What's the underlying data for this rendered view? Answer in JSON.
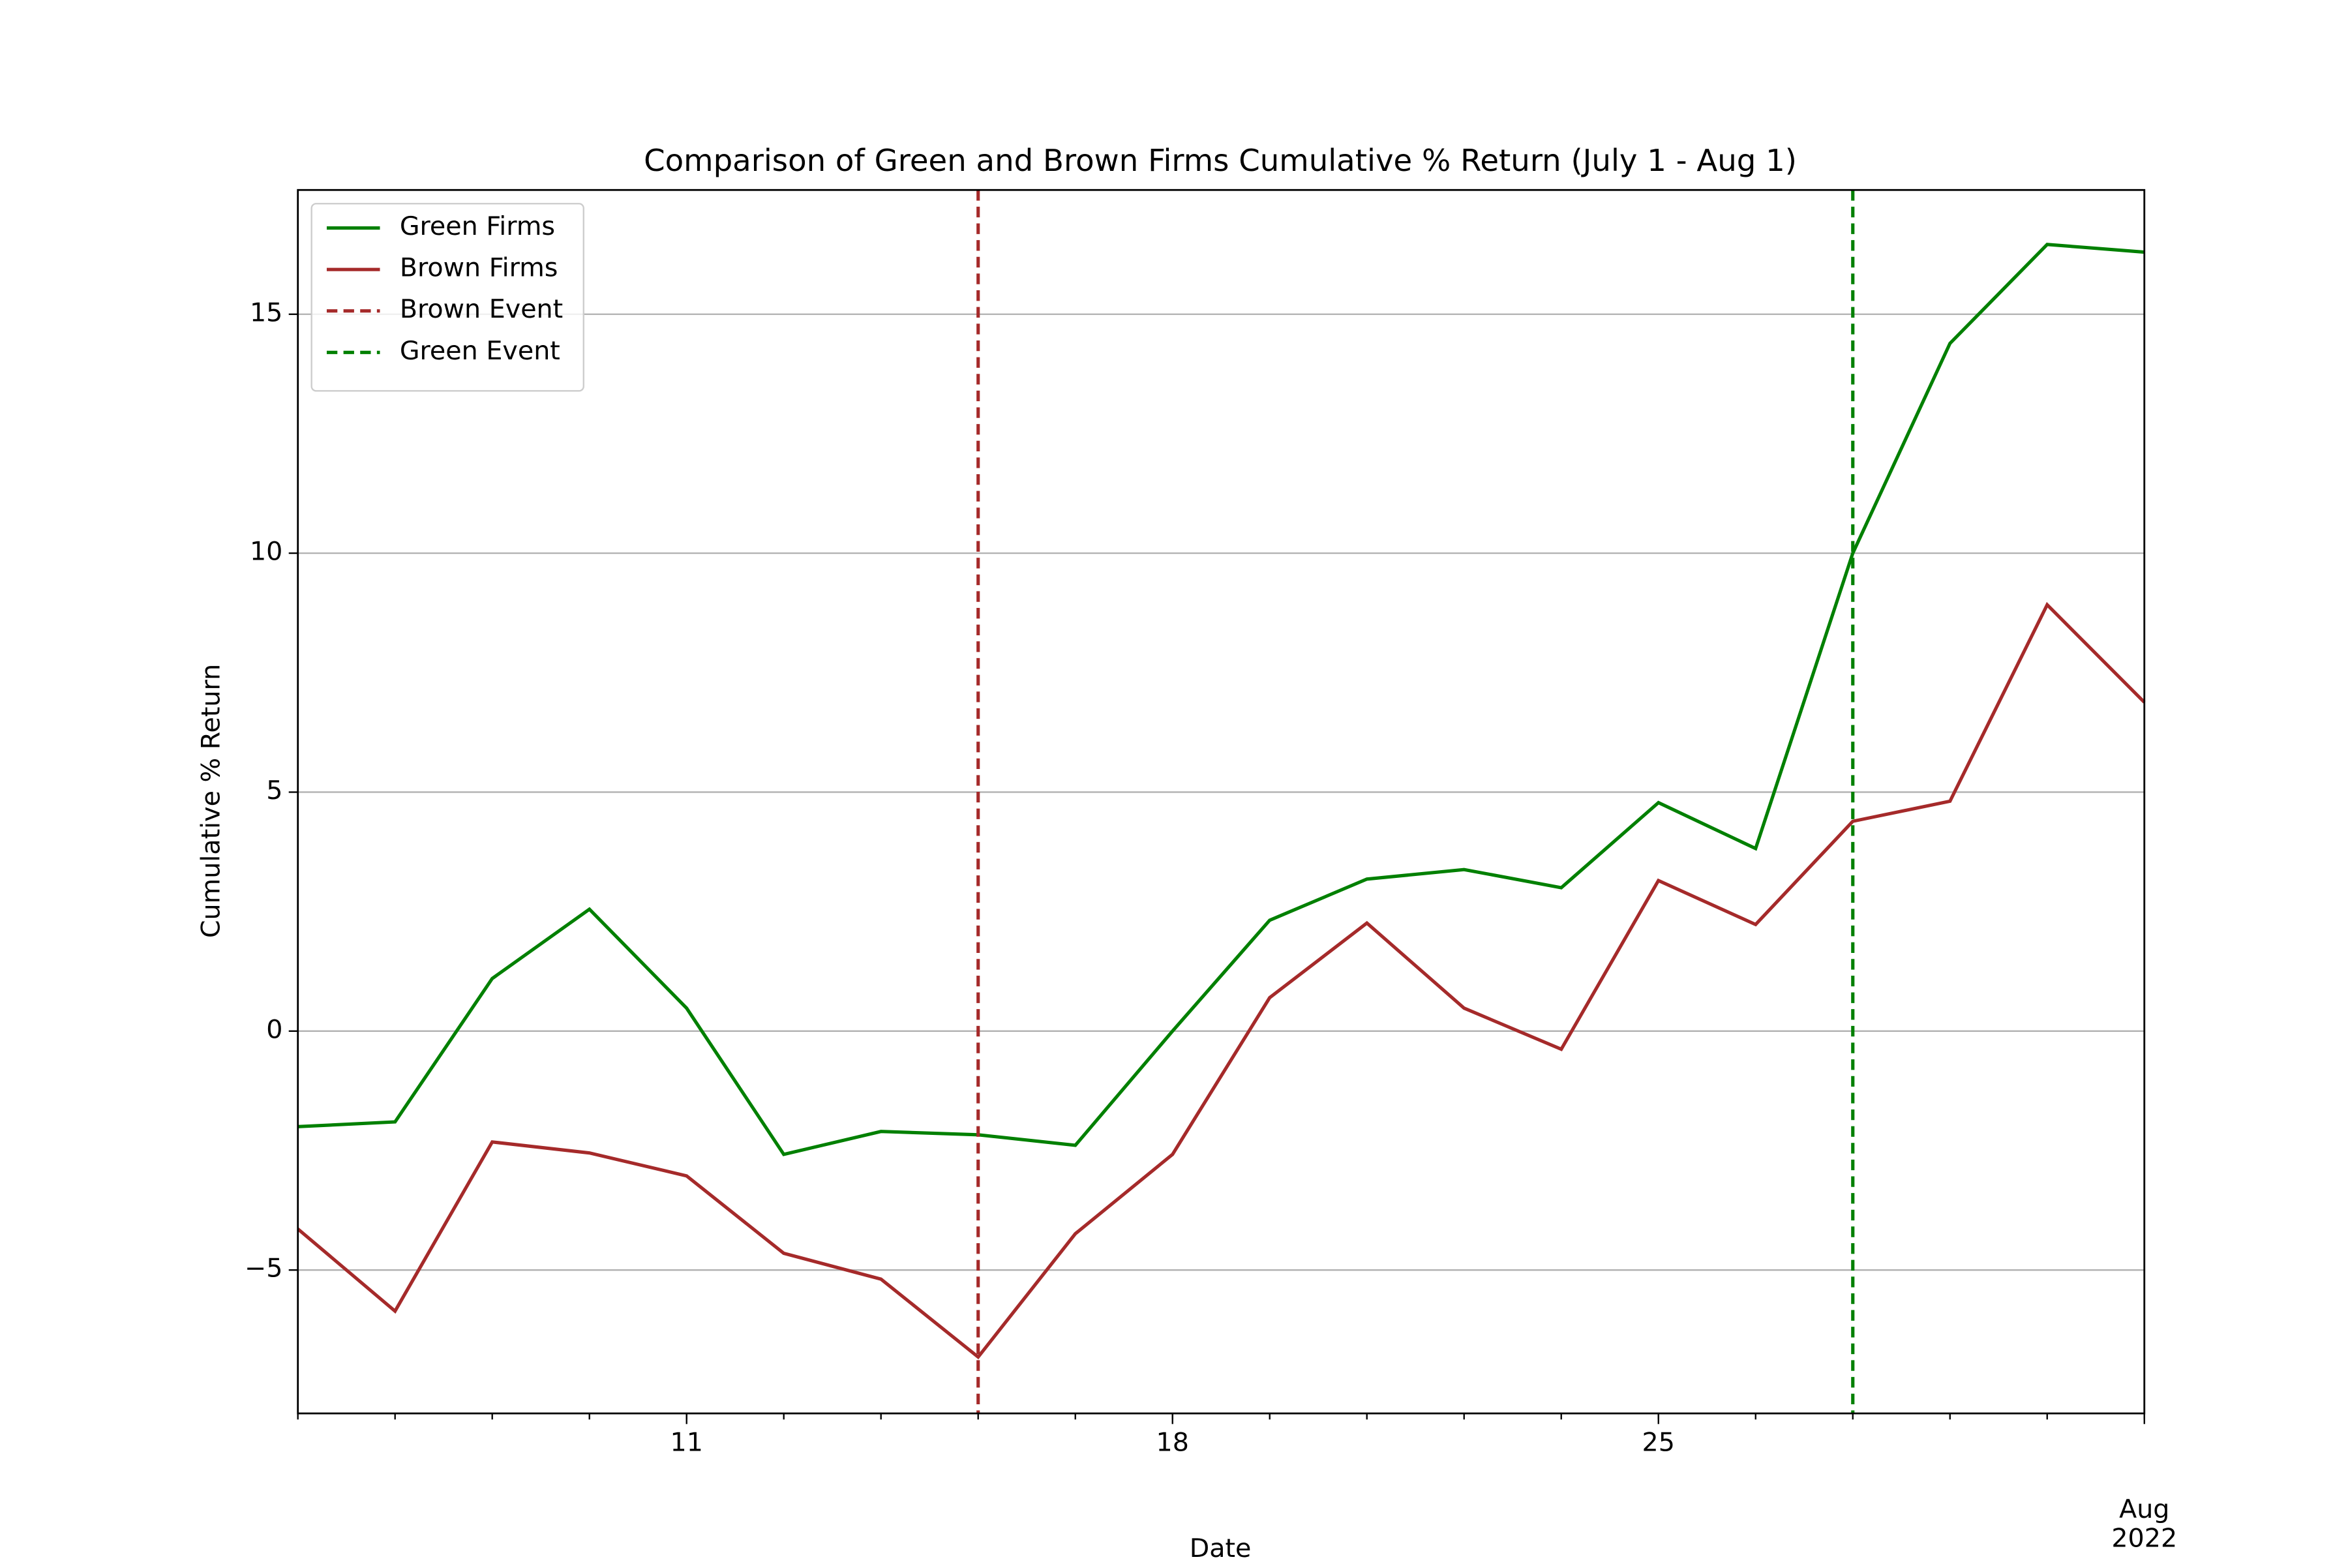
{
  "chart_data": {
    "type": "line",
    "title": "Comparison of Green and Brown Firms Cumulative % Return (July 1 - Aug 1)",
    "xlabel": "Date",
    "ylabel": "Cumulative % Return",
    "x": [
      "2022-07-05",
      "2022-07-06",
      "2022-07-07",
      "2022-07-08",
      "2022-07-11",
      "2022-07-12",
      "2022-07-13",
      "2022-07-14",
      "2022-07-15",
      "2022-07-18",
      "2022-07-19",
      "2022-07-20",
      "2022-07-21",
      "2022-07-22",
      "2022-07-25",
      "2022-07-26",
      "2022-07-27",
      "2022-07-28",
      "2022-07-29",
      "2022-08-01"
    ],
    "series": [
      {
        "name": "Green Firms",
        "color": "#008000",
        "values": [
          -2.0,
          -1.9,
          1.1,
          2.55,
          0.48,
          -2.58,
          -2.1,
          -2.17,
          -2.39,
          0,
          2.32,
          3.18,
          3.38,
          3.0,
          4.78,
          3.82,
          10.0,
          14.39,
          16.46,
          16.3
        ]
      },
      {
        "name": "Brown Firms",
        "color": "#a52a2a",
        "values": [
          -4.14,
          -5.86,
          -2.32,
          -2.55,
          -3.03,
          -4.65,
          -5.19,
          -6.82,
          -4.24,
          -2.58,
          0.7,
          2.26,
          0.48,
          -0.38,
          3.15,
          2.23,
          4.39,
          4.81,
          8.92,
          6.88
        ]
      }
    ],
    "events": [
      {
        "name": "Brown Event",
        "x": "2022-07-14",
        "color": "#a52a2a"
      },
      {
        "name": "Green Event",
        "x": "2022-07-27",
        "color": "#008000"
      }
    ],
    "ylim": [
      -8.0,
      17.6
    ],
    "yticks": [
      {
        "value": -5,
        "label": "−5"
      },
      0,
      5,
      10,
      15
    ],
    "xticks": [
      {
        "value": "2022-07-11",
        "label": "11"
      },
      {
        "value": "2022-07-18",
        "label": "18"
      },
      {
        "value": "2022-07-25",
        "label": "25"
      },
      {
        "value": "2022-08-01",
        "label": "Aug\n2022"
      }
    ],
    "grid": true,
    "legend": "upper left"
  }
}
